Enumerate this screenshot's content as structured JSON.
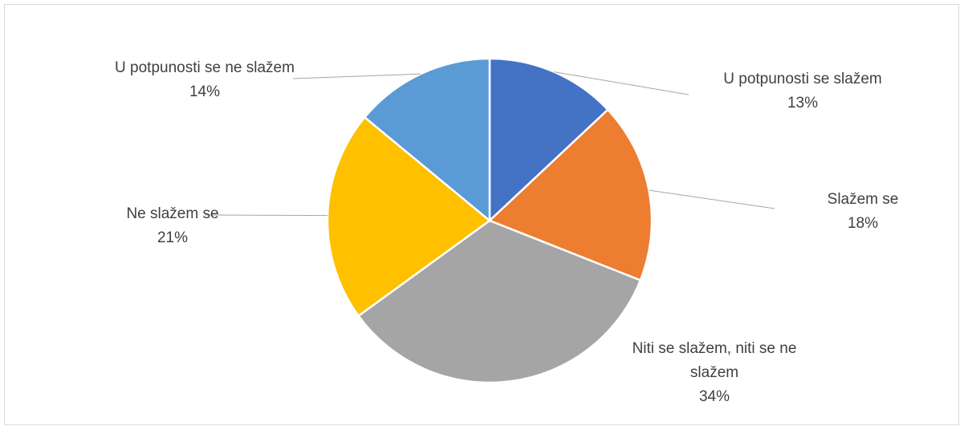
{
  "chart_data": {
    "type": "pie",
    "categories": [
      "U potpunosti se slažem",
      "Slažem se",
      "Niti se slažem, niti se ne slažem",
      "Ne slažem se",
      "U potpunosti se ne slažem"
    ],
    "values": [
      13,
      18,
      34,
      21,
      14
    ],
    "value_labels": [
      "13%",
      "18%",
      "34%",
      "21%",
      "14%"
    ],
    "colors": [
      "#4472c4",
      "#ed7d31",
      "#a5a5a5",
      "#ffc000",
      "#5b9bd5"
    ]
  }
}
